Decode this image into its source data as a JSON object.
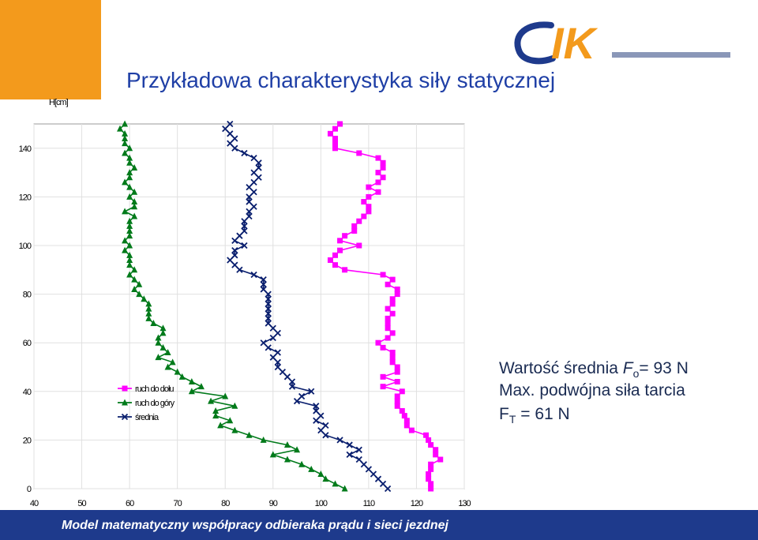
{
  "header": {
    "title": "Przykładowa charakterystyka siły statycznej"
  },
  "brand": {
    "logo_text": "IK",
    "accent": "#f39a1c",
    "primary": "#1e3a8c"
  },
  "notes": {
    "line1_prefix": "Wartość średnia ",
    "line1_symbol": "F",
    "line1_sub": "o",
    "line1_value": "= 93 N",
    "line2": "Max. podwójna siła tarcia",
    "line3_symbol": "F",
    "line3_sub": "T",
    "line3_value": " = 61 N"
  },
  "footer": {
    "text": "Model matematyczny współpracy odbieraka prądu i sieci jezdnej"
  },
  "chart_data": {
    "type": "line",
    "ylabel": "H[cm]",
    "xlabel": "",
    "xlim": [
      40,
      130
    ],
    "ylim": [
      0,
      150
    ],
    "x_ticks": [
      40,
      50,
      60,
      70,
      80,
      90,
      100,
      110,
      120,
      130
    ],
    "y_ticks": [
      0,
      20,
      40,
      60,
      80,
      100,
      120,
      140
    ],
    "grid": true,
    "legend_position": "lower-left-inside",
    "series": [
      {
        "name": "ruch do dołu",
        "color": "#ff00ff",
        "marker": "square",
        "points": [
          [
            123,
            0
          ],
          [
            123,
            2
          ],
          [
            122.5,
            4
          ],
          [
            122.5,
            6
          ],
          [
            123,
            8
          ],
          [
            123,
            10
          ],
          [
            125,
            12
          ],
          [
            124,
            14
          ],
          [
            124,
            16
          ],
          [
            123,
            18
          ],
          [
            122.5,
            20
          ],
          [
            122,
            22
          ],
          [
            119,
            24
          ],
          [
            118,
            26
          ],
          [
            118,
            28
          ],
          [
            117.5,
            30
          ],
          [
            117,
            32
          ],
          [
            116,
            34
          ],
          [
            116,
            36
          ],
          [
            116,
            38
          ],
          [
            117,
            40
          ],
          [
            113,
            42
          ],
          [
            116,
            44
          ],
          [
            113,
            46
          ],
          [
            116,
            48
          ],
          [
            116,
            50
          ],
          [
            115,
            52
          ],
          [
            115,
            54
          ],
          [
            115,
            56
          ],
          [
            113,
            58
          ],
          [
            112,
            60
          ],
          [
            114,
            62
          ],
          [
            115,
            64
          ],
          [
            114,
            66
          ],
          [
            114,
            68
          ],
          [
            114,
            70
          ],
          [
            115,
            72
          ],
          [
            114,
            74
          ],
          [
            115,
            76
          ],
          [
            115,
            78
          ],
          [
            116,
            80
          ],
          [
            116,
            82
          ],
          [
            114,
            84
          ],
          [
            115,
            86
          ],
          [
            113,
            88
          ],
          [
            105,
            90
          ],
          [
            103,
            92
          ],
          [
            102,
            94
          ],
          [
            103,
            96
          ],
          [
            104,
            98
          ],
          [
            108,
            100
          ],
          [
            104,
            102
          ],
          [
            105,
            104
          ],
          [
            107,
            106
          ],
          [
            107,
            108
          ],
          [
            108,
            110
          ],
          [
            109,
            112
          ],
          [
            110,
            114
          ],
          [
            110,
            116
          ],
          [
            109,
            118
          ],
          [
            110,
            120
          ],
          [
            112,
            122
          ],
          [
            110,
            124
          ],
          [
            112,
            126
          ],
          [
            113,
            128
          ],
          [
            112,
            130
          ],
          [
            113,
            132
          ],
          [
            113,
            134
          ],
          [
            112,
            136
          ],
          [
            108,
            138
          ],
          [
            103,
            140
          ],
          [
            103,
            142
          ],
          [
            103,
            144
          ],
          [
            102,
            146
          ],
          [
            103,
            148
          ],
          [
            104,
            150
          ]
        ]
      },
      {
        "name": "ruch do góry",
        "color": "#007a1a",
        "marker": "triangle",
        "points": [
          [
            105,
            0
          ],
          [
            103,
            2
          ],
          [
            101,
            4
          ],
          [
            100,
            6
          ],
          [
            98,
            8
          ],
          [
            96,
            10
          ],
          [
            93,
            12
          ],
          [
            90,
            14
          ],
          [
            95,
            16
          ],
          [
            93,
            18
          ],
          [
            88,
            20
          ],
          [
            85,
            22
          ],
          [
            82,
            24
          ],
          [
            79,
            26
          ],
          [
            81,
            28
          ],
          [
            78,
            30
          ],
          [
            78,
            32
          ],
          [
            82,
            34
          ],
          [
            77,
            36
          ],
          [
            80,
            38
          ],
          [
            73,
            40
          ],
          [
            75,
            42
          ],
          [
            73,
            44
          ],
          [
            71,
            46
          ],
          [
            70,
            48
          ],
          [
            68,
            50
          ],
          [
            69,
            52
          ],
          [
            66,
            54
          ],
          [
            68,
            56
          ],
          [
            67,
            58
          ],
          [
            66,
            60
          ],
          [
            66,
            62
          ],
          [
            67,
            64
          ],
          [
            67,
            66
          ],
          [
            65,
            68
          ],
          [
            64,
            70
          ],
          [
            64,
            72
          ],
          [
            64,
            74
          ],
          [
            64,
            76
          ],
          [
            63,
            78
          ],
          [
            62,
            80
          ],
          [
            61,
            82
          ],
          [
            62,
            84
          ],
          [
            61,
            86
          ],
          [
            60,
            88
          ],
          [
            61,
            90
          ],
          [
            60,
            92
          ],
          [
            60,
            94
          ],
          [
            60,
            96
          ],
          [
            59,
            98
          ],
          [
            60,
            100
          ],
          [
            59,
            102
          ],
          [
            60,
            104
          ],
          [
            60,
            106
          ],
          [
            60,
            108
          ],
          [
            60,
            110
          ],
          [
            61,
            112
          ],
          [
            59,
            114
          ],
          [
            61,
            116
          ],
          [
            61,
            118
          ],
          [
            60,
            120
          ],
          [
            61,
            122
          ],
          [
            60,
            124
          ],
          [
            59,
            126
          ],
          [
            60,
            128
          ],
          [
            60,
            130
          ],
          [
            61,
            132
          ],
          [
            60,
            134
          ],
          [
            60,
            136
          ],
          [
            59,
            138
          ],
          [
            60,
            140
          ],
          [
            59,
            142
          ],
          [
            59,
            144
          ],
          [
            59,
            146
          ],
          [
            58,
            148
          ],
          [
            59,
            150
          ]
        ]
      },
      {
        "name": "średnia",
        "color": "#0a1f6e",
        "marker": "x",
        "points": [
          [
            114,
            0
          ],
          [
            113,
            2
          ],
          [
            112,
            4
          ],
          [
            111,
            6
          ],
          [
            110,
            8
          ],
          [
            109,
            10
          ],
          [
            108,
            12
          ],
          [
            106,
            14
          ],
          [
            108,
            16
          ],
          [
            106,
            18
          ],
          [
            104,
            20
          ],
          [
            101,
            22
          ],
          [
            100,
            24
          ],
          [
            101,
            26
          ],
          [
            99,
            28
          ],
          [
            100,
            30
          ],
          [
            99,
            32
          ],
          [
            99,
            34
          ],
          [
            95,
            36
          ],
          [
            96,
            38
          ],
          [
            98,
            40
          ],
          [
            94,
            42
          ],
          [
            94,
            44
          ],
          [
            93,
            46
          ],
          [
            92,
            48
          ],
          [
            91,
            50
          ],
          [
            91,
            52
          ],
          [
            90,
            54
          ],
          [
            91,
            56
          ],
          [
            89,
            58
          ],
          [
            88,
            60
          ],
          [
            90,
            62
          ],
          [
            91,
            64
          ],
          [
            90,
            66
          ],
          [
            89,
            68
          ],
          [
            89,
            70
          ],
          [
            89,
            72
          ],
          [
            89,
            74
          ],
          [
            89,
            76
          ],
          [
            89,
            78
          ],
          [
            89,
            80
          ],
          [
            88,
            82
          ],
          [
            88,
            84
          ],
          [
            88,
            86
          ],
          [
            86,
            88
          ],
          [
            83,
            90
          ],
          [
            82,
            92
          ],
          [
            81,
            94
          ],
          [
            82,
            96
          ],
          [
            82,
            98
          ],
          [
            84,
            100
          ],
          [
            82,
            102
          ],
          [
            83,
            104
          ],
          [
            84,
            106
          ],
          [
            84,
            108
          ],
          [
            84,
            110
          ],
          [
            85,
            112
          ],
          [
            85,
            114
          ],
          [
            86,
            116
          ],
          [
            85,
            118
          ],
          [
            85,
            120
          ],
          [
            86,
            122
          ],
          [
            85,
            124
          ],
          [
            86,
            126
          ],
          [
            87,
            128
          ],
          [
            86,
            130
          ],
          [
            87,
            132
          ],
          [
            87,
            134
          ],
          [
            86,
            136
          ],
          [
            84,
            138
          ],
          [
            82,
            140
          ],
          [
            81,
            142
          ],
          [
            82,
            144
          ],
          [
            81,
            146
          ],
          [
            80,
            148
          ],
          [
            81,
            150
          ]
        ]
      }
    ]
  }
}
